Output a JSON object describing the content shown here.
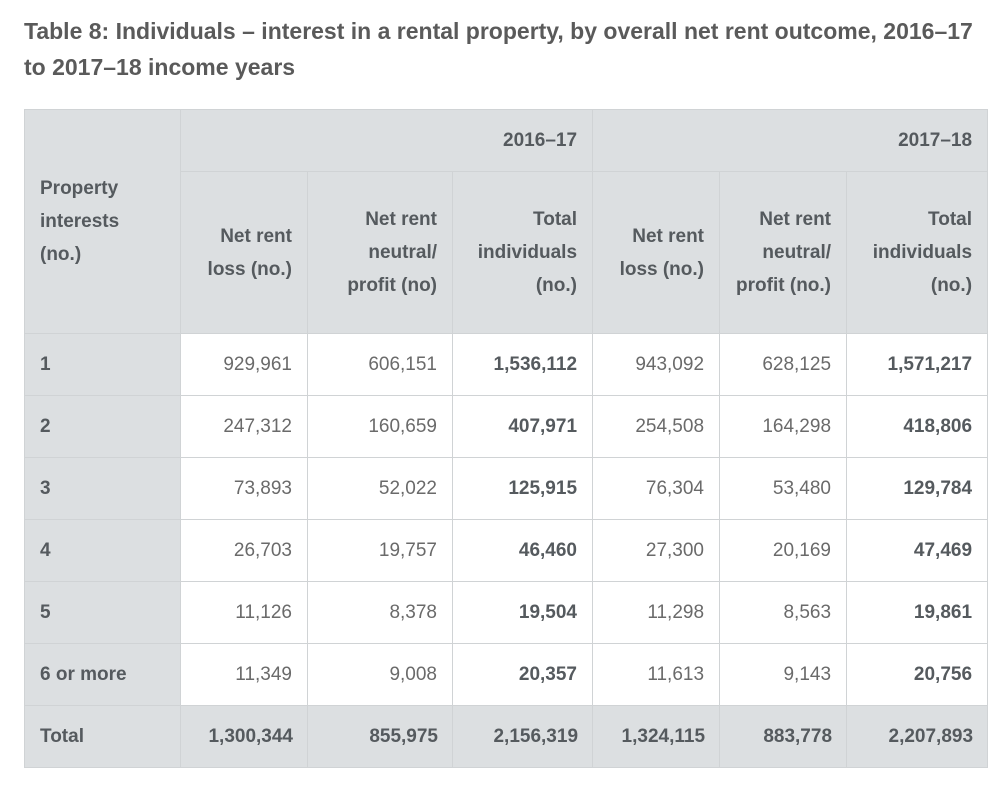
{
  "title": "Table 8: Individuals – interest in a rental property, by overall net rent outcome, 2016–17 to 2017–18 income years",
  "table": {
    "corner_header": "Property interests (no.)",
    "year_groups": [
      "2016–17",
      "2017–18"
    ],
    "columns": [
      "Net rent loss (no.)",
      "Net rent neutral/ profit (no)",
      "Total individuals (no.)",
      "Net rent loss (no.)",
      "Net rent neutral/ profit (no.)",
      "Total individuals (no.)"
    ],
    "rows": [
      {
        "label": "1",
        "values": [
          "929,961",
          "606,151",
          "1,536,112",
          "943,092",
          "628,125",
          "1,571,217"
        ]
      },
      {
        "label": "2",
        "values": [
          "247,312",
          "160,659",
          "407,971",
          "254,508",
          "164,298",
          "418,806"
        ]
      },
      {
        "label": "3",
        "values": [
          "73,893",
          "52,022",
          "125,915",
          "76,304",
          "53,480",
          "129,784"
        ]
      },
      {
        "label": "4",
        "values": [
          "26,703",
          "19,757",
          "46,460",
          "27,300",
          "20,169",
          "47,469"
        ]
      },
      {
        "label": "5",
        "values": [
          "11,126",
          "8,378",
          "19,504",
          "11,298",
          "8,563",
          "19,861"
        ]
      },
      {
        "label": "6 or more",
        "values": [
          "11,349",
          "9,008",
          "20,357",
          "11,613",
          "9,143",
          "20,756"
        ]
      }
    ],
    "total_row": {
      "label": "Total",
      "values": [
        "1,300,344",
        "855,975",
        "2,156,319",
        "1,324,115",
        "883,778",
        "2,207,893"
      ]
    }
  },
  "colors": {
    "header_background": "#dcdfe1",
    "border": "#d0d3d5",
    "text": "#5a5a5a"
  }
}
